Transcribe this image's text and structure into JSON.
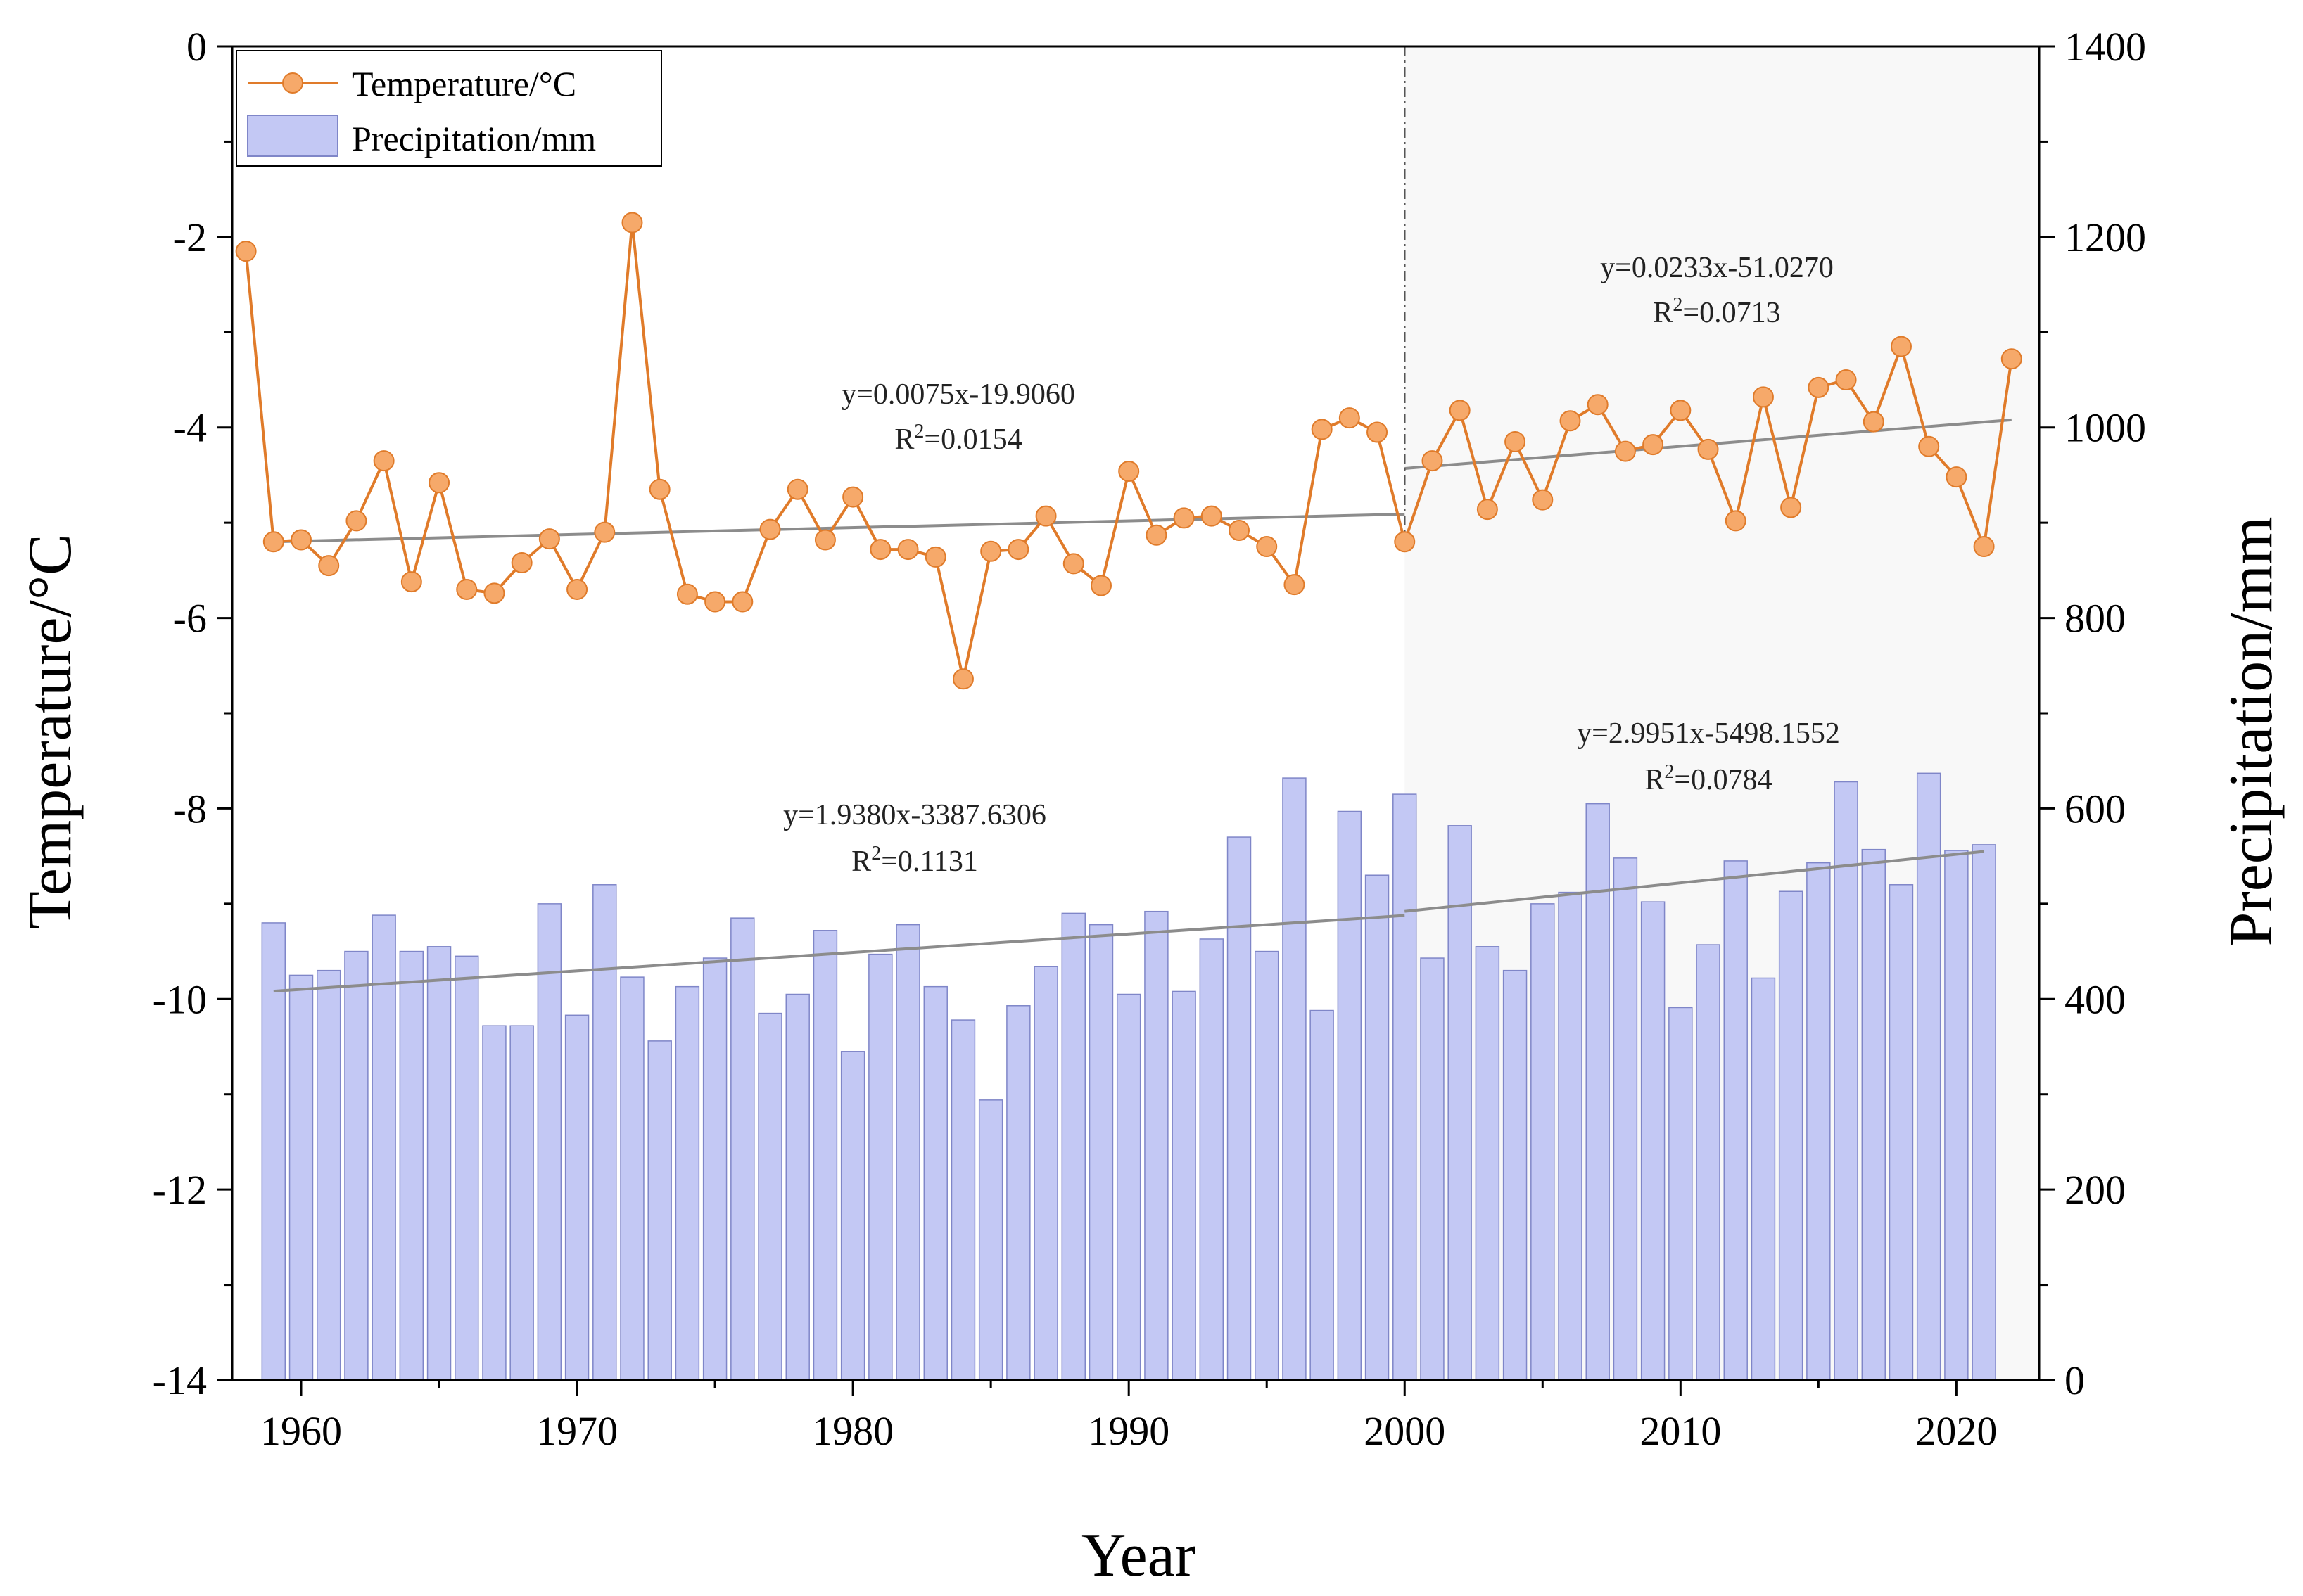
{
  "chart_data": {
    "type": "bar+line",
    "xlabel": "Year",
    "ylabel_left": "Temperature/°C",
    "ylabel_right": "Precipitation/mm",
    "xlim": [
      1957.5,
      2023
    ],
    "ylim_left": [
      -14,
      0
    ],
    "ylim_right": [
      0,
      1400
    ],
    "x_ticks": [
      "1960",
      "1970",
      "1980",
      "1990",
      "2000",
      "2010",
      "2020"
    ],
    "y_left_ticks": [
      "0",
      "-2",
      "-4",
      "-6",
      "-8",
      "-10",
      "-12",
      "-14"
    ],
    "y_right_ticks": [
      "1400",
      "1200",
      "1000",
      "800",
      "600",
      "400",
      "200",
      "0"
    ],
    "grid": false,
    "legend_position": "top-left",
    "split_year": 2000,
    "colors": {
      "temperature": "#E07B2A",
      "temperature_marker": "#F6A96A",
      "precipitation_fill": "#C3C8F4",
      "precipitation_edge": "#7F86C8",
      "trend": "#8C8C8C",
      "shade": "#F8F8F8"
    },
    "series": [
      {
        "name": "Temperature/°C",
        "axis": "left",
        "kind": "line",
        "x": [
          1958,
          1959,
          1960,
          1961,
          1962,
          1963,
          1964,
          1965,
          1966,
          1967,
          1968,
          1969,
          1970,
          1971,
          1972,
          1973,
          1974,
          1975,
          1976,
          1977,
          1978,
          1979,
          1980,
          1981,
          1982,
          1983,
          1984,
          1985,
          1986,
          1987,
          1988,
          1989,
          1990,
          1991,
          1992,
          1993,
          1994,
          1995,
          1996,
          1997,
          1998,
          1999,
          2000,
          2001,
          2002,
          2003,
          2004,
          2005,
          2006,
          2007,
          2008,
          2009,
          2010,
          2011,
          2012,
          2013,
          2014,
          2015,
          2016,
          2017,
          2018,
          2019,
          2020,
          2021,
          2022
        ],
        "values": [
          -2.15,
          -5.2,
          -5.18,
          -5.45,
          -4.98,
          -4.35,
          -5.62,
          -4.58,
          -5.7,
          -5.74,
          -5.42,
          -5.17,
          -5.7,
          -5.1,
          -1.85,
          -4.65,
          -5.75,
          -5.83,
          -5.83,
          -5.07,
          -4.65,
          -5.18,
          -4.73,
          -5.28,
          -5.28,
          -5.36,
          -6.64,
          -5.3,
          -5.28,
          -4.93,
          -5.43,
          -5.66,
          -4.46,
          -5.13,
          -4.95,
          -4.93,
          -5.08,
          -5.25,
          -5.65,
          -4.02,
          -3.9,
          -4.05,
          -5.2,
          -4.35,
          -3.82,
          -4.86,
          -4.15,
          -4.76,
          -3.93,
          -3.76,
          -4.25,
          -4.18,
          -3.82,
          -4.23,
          -4.98,
          -3.68,
          -4.84,
          -3.58,
          -3.5,
          -3.94,
          -3.15,
          -4.2,
          -4.52,
          -5.25,
          -3.28
        ]
      },
      {
        "name": "Precipitation/mm",
        "axis": "right",
        "kind": "bar",
        "x": [
          1959,
          1960,
          1961,
          1962,
          1963,
          1964,
          1965,
          1966,
          1967,
          1968,
          1969,
          1970,
          1971,
          1972,
          1973,
          1974,
          1975,
          1976,
          1977,
          1978,
          1979,
          1980,
          1981,
          1982,
          1983,
          1984,
          1985,
          1986,
          1987,
          1988,
          1989,
          1990,
          1991,
          1992,
          1993,
          1994,
          1995,
          1996,
          1997,
          1998,
          1999,
          2000,
          2001,
          2002,
          2003,
          2004,
          2005,
          2006,
          2007,
          2008,
          2009,
          2010,
          2011,
          2012,
          2013,
          2014,
          2015,
          2016,
          2017,
          2018,
          2019,
          2020,
          2021
        ],
        "values": [
          480,
          425,
          430,
          450,
          488,
          450,
          455,
          445,
          372,
          372,
          500,
          383,
          520,
          423,
          356,
          413,
          443,
          485,
          385,
          405,
          472,
          345,
          447,
          478,
          413,
          378,
          294,
          393,
          434,
          490,
          478,
          405,
          492,
          408,
          463,
          570,
          450,
          632,
          388,
          597,
          530,
          615,
          443,
          582,
          455,
          430,
          500,
          512,
          605,
          548,
          502,
          391,
          457,
          545,
          422,
          513,
          543,
          628,
          557,
          520,
          637,
          556,
          562
        ]
      }
    ],
    "trends": [
      {
        "name": "temperature_1958_2000",
        "axis": "left",
        "x": [
          1959,
          2000
        ],
        "y": [
          -5.2,
          -4.91
        ],
        "equation": "y=0.0075x-19.9060",
        "r2_prefix": "R",
        "r2_exp": "2",
        "r2_value": "=0.0154"
      },
      {
        "name": "temperature_2000_2022",
        "axis": "left",
        "x": [
          2000,
          2022
        ],
        "y": [
          -4.43,
          -3.92
        ],
        "equation": "y=0.0233x-51.0270",
        "r2_prefix": "R",
        "r2_exp": "2",
        "r2_value": "=0.0713"
      },
      {
        "name": "precipitation_1959_2000",
        "axis": "right",
        "x": [
          1959,
          2000
        ],
        "y": [
          408.2,
          487.7
        ],
        "equation": "y=1.9380x-3387.6306",
        "r2_prefix": "R",
        "r2_exp": "2",
        "r2_value": "=0.1131"
      },
      {
        "name": "precipitation_2000_2021",
        "axis": "right",
        "x": [
          2000,
          2021
        ],
        "y": [
          492.0,
          554.9
        ],
        "equation": "y=2.9951x-5498.1552",
        "r2_prefix": "R",
        "r2_exp": "2",
        "r2_value": "=0.0784"
      }
    ]
  }
}
